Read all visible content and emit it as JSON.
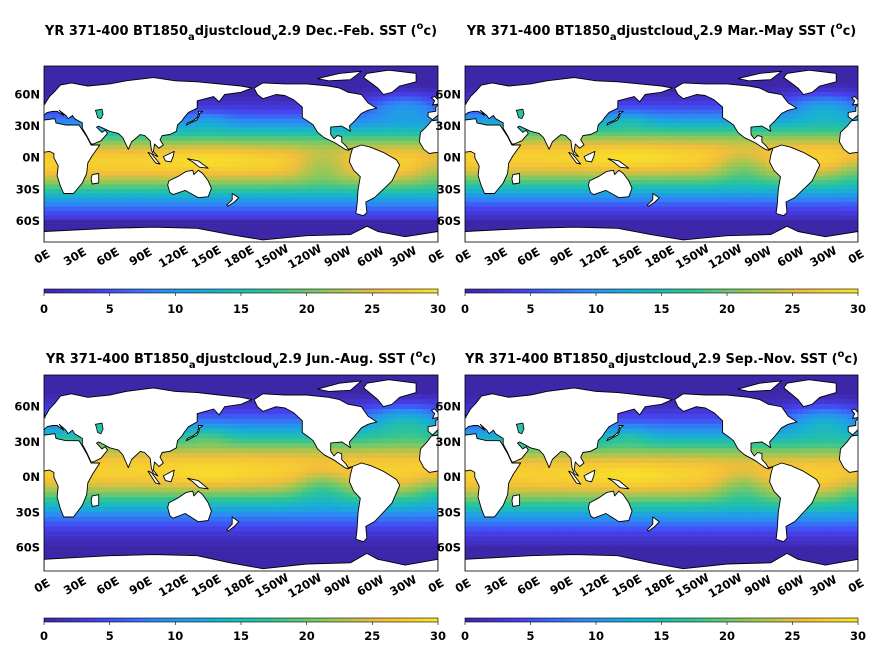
{
  "colors": {
    "land": "#ffffff",
    "coast": "#000000",
    "scale": [
      "#3e26a8",
      "#4743f0",
      "#2e87f7",
      "#17b1d3",
      "#2cc597",
      "#8ec75a",
      "#f3be39",
      "#f9e626"
    ]
  },
  "colorbar": {
    "ticks": [
      "0",
      "5",
      "10",
      "15",
      "20",
      "25",
      "30"
    ],
    "min": 0,
    "max": 30
  },
  "lat_labels": [
    "60N",
    "30N",
    "0N",
    "30S",
    "60S"
  ],
  "lon_labels": [
    "0E",
    "30E",
    "60E",
    "90E",
    "120E",
    "150E",
    "180E",
    "150W",
    "120W",
    "90W",
    "60W",
    "30W",
    "0E"
  ],
  "panels": [
    {
      "season": "djf",
      "title": {
        "pre": "YR 371-400 BT1850",
        "sub1": "a",
        "mid": "djustcloud",
        "sub2": "v",
        "post": "2.9 Dec.-Feb. SST (",
        "sup": "o",
        "end": "c)"
      }
    },
    {
      "season": "mam",
      "title": {
        "pre": "YR 371-400 BT1850",
        "sub1": "a",
        "mid": "djustcloud",
        "sub2": "v",
        "post": "2.9 Mar.-May SST (",
        "sup": "o",
        "end": "c)"
      }
    },
    {
      "season": "jja",
      "title": {
        "pre": "YR 371-400 BT1850",
        "sub1": "a",
        "mid": "djustcloud",
        "sub2": "v",
        "post": "2.9 Jun.-Aug. SST (",
        "sup": "o",
        "end": "c)"
      }
    },
    {
      "season": "son",
      "title": {
        "pre": "YR 371-400 BT1850",
        "sub1": "a",
        "mid": "djustcloud",
        "sub2": "v",
        "post": "2.9 Sep.-Nov. SST (",
        "sup": "o",
        "end": "c)"
      }
    }
  ]
}
